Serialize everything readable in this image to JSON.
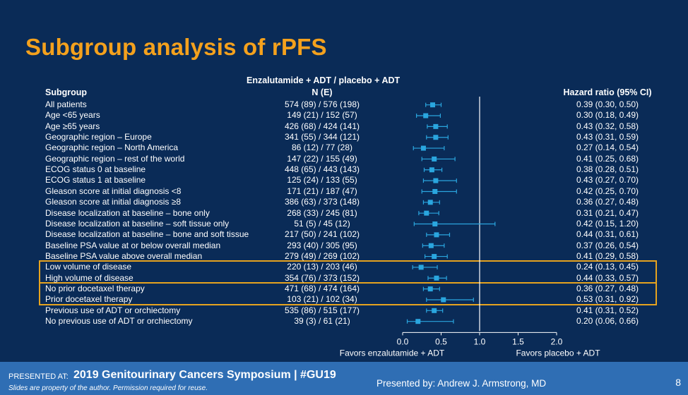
{
  "title": "Subgroup analysis of rPFS",
  "headers": {
    "subgroup": "Subgroup",
    "arms": "Enzalutamide + ADT / placebo + ADT",
    "n": "N (E)",
    "hr": "Hazard ratio (95% CI)"
  },
  "footer": {
    "presented_at": "PRESENTED AT:",
    "symposium": "2019 Genitourinary Cancers Symposium  |  #GU19",
    "disclaimer": "Slides are property of the author. Permission required for reuse.",
    "presenter": "Presented by: Andrew J. Armstrong, MD",
    "page": "8"
  },
  "chart_data": {
    "type": "forest",
    "xlim": [
      0.0,
      2.0
    ],
    "reference_line": 1.0,
    "x_ticks": [
      "0.0",
      "0.5",
      "1.0",
      "1.5",
      "2.0"
    ],
    "x_tick_values": [
      0.0,
      0.5,
      1.0,
      1.5,
      2.0
    ],
    "left_label": "Favors enzalutamide + ADT",
    "right_label": "Favors placebo + ADT",
    "marker_color": "#2aa6df",
    "highlight_color": "#e6a31f",
    "rows": [
      {
        "subgroup": "All patients",
        "n": "574 (89) / 576 (198)",
        "hr_text": "0.39 (0.30, 0.50)",
        "hr": 0.39,
        "lo": 0.3,
        "hi": 0.5
      },
      {
        "subgroup": "Age <65 years",
        "n": "149 (21) / 152 (57)",
        "hr_text": "0.30 (0.18, 0.49)",
        "hr": 0.3,
        "lo": 0.18,
        "hi": 0.49
      },
      {
        "subgroup": "Age ≥65 years",
        "n": "426 (68) / 424 (141)",
        "hr_text": "0.43 (0.32, 0.58)",
        "hr": 0.43,
        "lo": 0.32,
        "hi": 0.58
      },
      {
        "subgroup": "Geographic region – Europe",
        "n": "341 (55) / 344 (121)",
        "hr_text": "0.43 (0.31, 0.59)",
        "hr": 0.43,
        "lo": 0.31,
        "hi": 0.59
      },
      {
        "subgroup": "Geographic region – North America",
        "n": "86 (12) / 77 (28)",
        "hr_text": "0.27 (0.14, 0.54)",
        "hr": 0.27,
        "lo": 0.14,
        "hi": 0.54
      },
      {
        "subgroup": "Geographic region – rest of the world",
        "n": "147 (22) / 155 (49)",
        "hr_text": "0.41 (0.25, 0.68)",
        "hr": 0.41,
        "lo": 0.25,
        "hi": 0.68
      },
      {
        "subgroup": "ECOG status 0 at baseline",
        "n": "448 (65) / 443 (143)",
        "hr_text": "0.38 (0.28, 0.51)",
        "hr": 0.38,
        "lo": 0.28,
        "hi": 0.51
      },
      {
        "subgroup": "ECOG status 1 at baseline",
        "n": "125 (24) / 133 (55)",
        "hr_text": "0.43 (0.27, 0.70)",
        "hr": 0.43,
        "lo": 0.27,
        "hi": 0.7
      },
      {
        "subgroup": "Gleason score at initial diagnosis <8",
        "n": "171 (21) / 187 (47)",
        "hr_text": "0.42 (0.25, 0.70)",
        "hr": 0.42,
        "lo": 0.25,
        "hi": 0.7
      },
      {
        "subgroup": "Gleason score at initial diagnosis ≥8",
        "n": "386 (63) / 373 (148)",
        "hr_text": "0.36 (0.27, 0.48)",
        "hr": 0.36,
        "lo": 0.27,
        "hi": 0.48
      },
      {
        "subgroup": "Disease localization at baseline – bone only",
        "n": "268 (33) / 245 (81)",
        "hr_text": "0.31 (0.21, 0.47)",
        "hr": 0.31,
        "lo": 0.21,
        "hi": 0.47
      },
      {
        "subgroup": "Disease localization at baseline – soft tissue only",
        "n": "51 (5) / 45 (12)",
        "hr_text": "0.42 (0.15, 1.20)",
        "hr": 0.42,
        "lo": 0.15,
        "hi": 1.2
      },
      {
        "subgroup": "Disease localization at baseline – bone and soft tissue",
        "n": "217 (50) / 241 (102)",
        "hr_text": "0.44 (0.31, 0.61)",
        "hr": 0.44,
        "lo": 0.31,
        "hi": 0.61
      },
      {
        "subgroup": "Baseline PSA value at or below overall median",
        "n": "293 (40) / 305 (95)",
        "hr_text": "0.37 (0.26, 0.54)",
        "hr": 0.37,
        "lo": 0.26,
        "hi": 0.54
      },
      {
        "subgroup": "Baseline PSA value above overall median",
        "n": "279 (49) / 269 (102)",
        "hr_text": "0.41 (0.29, 0.58)",
        "hr": 0.41,
        "lo": 0.29,
        "hi": 0.58
      },
      {
        "subgroup": "Low volume of disease",
        "n": "220 (13) / 203 (46)",
        "hr_text": "0.24 (0.13, 0.45)",
        "hr": 0.24,
        "lo": 0.13,
        "hi": 0.45
      },
      {
        "subgroup": "High volume of disease",
        "n": "354 (76) / 373 (152)",
        "hr_text": "0.44 (0.33, 0.57)",
        "hr": 0.44,
        "lo": 0.33,
        "hi": 0.57
      },
      {
        "subgroup": "No prior docetaxel therapy",
        "n": "471 (68) / 474 (164)",
        "hr_text": "0.36 (0.27, 0.48)",
        "hr": 0.36,
        "lo": 0.27,
        "hi": 0.48
      },
      {
        "subgroup": "Prior docetaxel therapy",
        "n": "103 (21) / 102 (34)",
        "hr_text": "0.53 (0.31, 0.92)",
        "hr": 0.53,
        "lo": 0.31,
        "hi": 0.92
      },
      {
        "subgroup": "Previous use of ADT or orchiectomy",
        "n": "535 (86) / 515 (177)",
        "hr_text": "0.41 (0.31, 0.52)",
        "hr": 0.41,
        "lo": 0.31,
        "hi": 0.52
      },
      {
        "subgroup": "No previous use of ADT or orchiectomy",
        "n": "39 (3) / 61 (21)",
        "hr_text": "0.20 (0.06, 0.66)",
        "hr": 0.2,
        "lo": 0.06,
        "hi": 0.66
      }
    ],
    "highlight_groups": [
      [
        15,
        16
      ],
      [
        17,
        18
      ]
    ]
  }
}
